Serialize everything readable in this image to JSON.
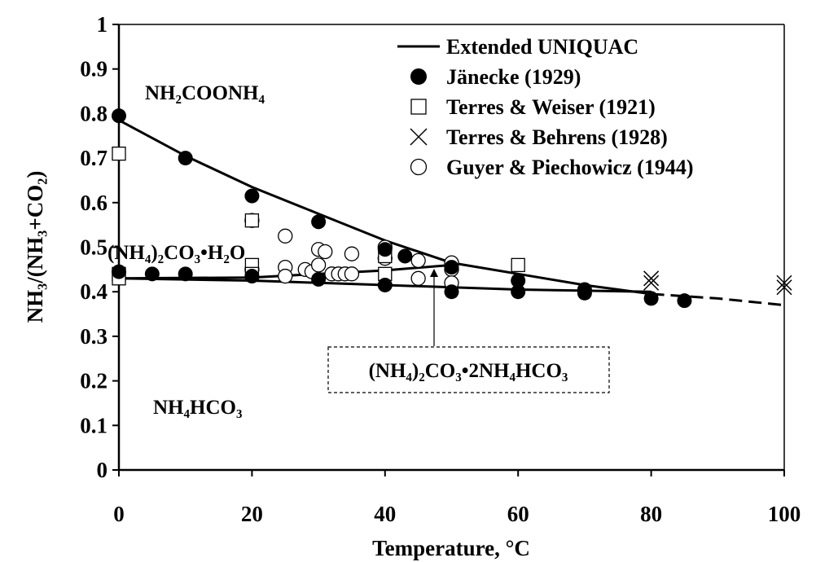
{
  "chart_data": {
    "type": "scatter",
    "xlabel": "Temperature, °C",
    "ylabel": "NH₃/(NH₃+CO₂)",
    "xlim": [
      0,
      100
    ],
    "ylim": [
      0,
      1
    ],
    "x_ticks": [
      "0",
      "20",
      "40",
      "60",
      "80",
      "100"
    ],
    "y_ticks": [
      "0",
      "0.1",
      "0.2",
      "0.3",
      "0.4",
      "0.5",
      "0.6",
      "0.7",
      "0.8",
      "0.9",
      "1"
    ],
    "grid": false,
    "legend_position": "top-right",
    "legend": [
      {
        "label": "Extended UNIQUAC",
        "symbol": "line"
      },
      {
        "label": "Jänecke (1929)",
        "symbol": "filled-circle"
      },
      {
        "label": "Terres & Weiser (1921)",
        "symbol": "open-square"
      },
      {
        "label": "Terres & Behrens (1928)",
        "symbol": "x-mark"
      },
      {
        "label": "Guyer & Piechowicz (1944)",
        "symbol": "open-circle"
      }
    ],
    "region_labels": {
      "carbamate": "NH₂COONH₄",
      "carbonate_hydrate": "(NH₄)₂CO₃•H₂O",
      "bicarbonate": "NH₄HCO₃",
      "double_salt": "(NH₄)₂CO₃•2NH₄HCO₃"
    },
    "lines": [
      {
        "name": "Extended UNIQUAC",
        "x": [
          0,
          10,
          20,
          30,
          40,
          45,
          50,
          60,
          70,
          80
        ],
        "y": [
          0.785,
          0.705,
          0.635,
          0.575,
          0.515,
          0.49,
          0.465,
          0.44,
          0.415,
          0.395
        ]
      },
      {
        "name": "Extended UNIQUAC",
        "x": [
          0,
          20,
          40,
          50
        ],
        "y": [
          0.43,
          0.432,
          0.448,
          0.46
        ]
      },
      {
        "name": "Extended UNIQUAC",
        "x": [
          0,
          20,
          40,
          60,
          80
        ],
        "y": [
          0.43,
          0.425,
          0.415,
          0.405,
          0.4
        ]
      },
      {
        "name": "Extended UNIQUAC",
        "x": [
          80,
          90,
          100
        ],
        "y": [
          0.395,
          0.385,
          0.37
        ],
        "dashed": true
      }
    ],
    "series": [
      {
        "name": "Jänecke (1929)",
        "marker": "filled-circle",
        "x": [
          0,
          0,
          5,
          10,
          10,
          20,
          20,
          30,
          30,
          40,
          40,
          43,
          50,
          50,
          60,
          60,
          70,
          70,
          80,
          85
        ],
        "y": [
          0.795,
          0.445,
          0.44,
          0.7,
          0.44,
          0.615,
          0.435,
          0.557,
          0.428,
          0.495,
          0.415,
          0.48,
          0.455,
          0.4,
          0.425,
          0.4,
          0.405,
          0.397,
          0.385,
          0.38
        ]
      },
      {
        "name": "Terres & Weiser (1921)",
        "marker": "open-square",
        "x": [
          0,
          0,
          0,
          20,
          20,
          20,
          40,
          40,
          60
        ],
        "y": [
          0.71,
          0.44,
          0.43,
          0.56,
          0.46,
          0.44,
          0.48,
          0.44,
          0.46
        ]
      },
      {
        "name": "Terres & Behrens (1928)",
        "marker": "x-mark",
        "x": [
          80,
          80,
          100,
          100
        ],
        "y": [
          0.43,
          0.42,
          0.42,
          0.41
        ]
      },
      {
        "name": "Guyer & Piechowicz (1944)",
        "marker": "open-circle",
        "x": [
          20,
          20,
          25,
          25,
          25,
          28,
          29,
          30,
          30,
          31,
          32,
          33,
          34,
          35,
          35,
          40,
          40,
          45,
          45,
          50,
          50,
          50
        ],
        "y": [
          0.56,
          0.45,
          0.525,
          0.455,
          0.435,
          0.45,
          0.445,
          0.495,
          0.46,
          0.49,
          0.44,
          0.44,
          0.44,
          0.485,
          0.44,
          0.5,
          0.475,
          0.47,
          0.43,
          0.465,
          0.45,
          0.42
        ]
      }
    ]
  }
}
